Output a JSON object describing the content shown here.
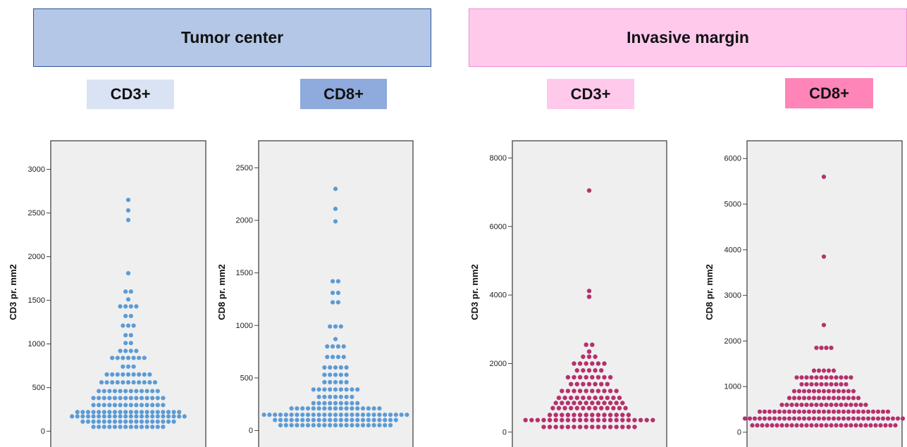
{
  "groups": [
    {
      "label": "Tumor center",
      "color": "#b4c7e7",
      "border": "#2f5597"
    },
    {
      "label": "Invasive margin",
      "color": "#ffc9ec",
      "border": "#f08cd0"
    }
  ],
  "markers": [
    {
      "label": "CD3+",
      "color": "#dae3f3"
    },
    {
      "label": "CD8+",
      "color": "#8faadc"
    },
    {
      "label": "CD3+",
      "color": "#ffc9ec"
    },
    {
      "label": "CD8+",
      "color": "#ff85b8"
    }
  ],
  "chart_data": [
    {
      "type": "scatter",
      "ylabel": "CD3 pr. mm2",
      "yticks": [
        0,
        500,
        1000,
        1500,
        2000,
        2500,
        3000
      ],
      "ylim": [
        -100,
        3150
      ],
      "point_color": "#5b9bd5",
      "bins": [
        {
          "y": 2650,
          "n": 1
        },
        {
          "y": 2530,
          "n": 1
        },
        {
          "y": 2420,
          "n": 1
        },
        {
          "y": 1810,
          "n": 1
        },
        {
          "y": 1600,
          "n": 2
        },
        {
          "y": 1510,
          "n": 1
        },
        {
          "y": 1430,
          "n": 4
        },
        {
          "y": 1320,
          "n": 2
        },
        {
          "y": 1210,
          "n": 3
        },
        {
          "y": 1100,
          "n": 2
        },
        {
          "y": 1010,
          "n": 2
        },
        {
          "y": 920,
          "n": 4
        },
        {
          "y": 840,
          "n": 7
        },
        {
          "y": 740,
          "n": 3
        },
        {
          "y": 650,
          "n": 9
        },
        {
          "y": 560,
          "n": 11
        },
        {
          "y": 460,
          "n": 12
        },
        {
          "y": 380,
          "n": 14
        },
        {
          "y": 300,
          "n": 14
        },
        {
          "y": 220,
          "n": 20
        },
        {
          "y": 170,
          "n": 22
        },
        {
          "y": 110,
          "n": 18
        },
        {
          "y": 50,
          "n": 14
        }
      ]
    },
    {
      "type": "scatter",
      "ylabel": "CD8 pr. mm2",
      "yticks": [
        0,
        500,
        1000,
        1500,
        2000,
        2500
      ],
      "ylim": [
        -90,
        2610
      ],
      "point_color": "#5b9bd5",
      "bins": [
        {
          "y": 2300,
          "n": 1
        },
        {
          "y": 2110,
          "n": 1
        },
        {
          "y": 1990,
          "n": 1
        },
        {
          "y": 1420,
          "n": 2
        },
        {
          "y": 1310,
          "n": 2
        },
        {
          "y": 1220,
          "n": 2
        },
        {
          "y": 990,
          "n": 3
        },
        {
          "y": 870,
          "n": 1
        },
        {
          "y": 800,
          "n": 4
        },
        {
          "y": 700,
          "n": 4
        },
        {
          "y": 600,
          "n": 5
        },
        {
          "y": 530,
          "n": 5
        },
        {
          "y": 460,
          "n": 5
        },
        {
          "y": 390,
          "n": 9
        },
        {
          "y": 320,
          "n": 7
        },
        {
          "y": 260,
          "n": 9
        },
        {
          "y": 210,
          "n": 17
        },
        {
          "y": 150,
          "n": 27
        },
        {
          "y": 100,
          "n": 23
        },
        {
          "y": 50,
          "n": 21
        }
      ]
    },
    {
      "type": "scatter",
      "ylabel": "CD3 pr. mm2",
      "yticks": [
        0,
        2000,
        4000,
        6000,
        8000
      ],
      "ylim": [
        -250,
        8050
      ],
      "point_color": "#b5306e",
      "bins": [
        {
          "y": 7050,
          "n": 1
        },
        {
          "y": 4120,
          "n": 1
        },
        {
          "y": 3950,
          "n": 1
        },
        {
          "y": 2550,
          "n": 2
        },
        {
          "y": 2350,
          "n": 1
        },
        {
          "y": 2200,
          "n": 3
        },
        {
          "y": 2000,
          "n": 6
        },
        {
          "y": 1800,
          "n": 5
        },
        {
          "y": 1600,
          "n": 8
        },
        {
          "y": 1400,
          "n": 7
        },
        {
          "y": 1200,
          "n": 10
        },
        {
          "y": 1000,
          "n": 11
        },
        {
          "y": 850,
          "n": 12
        },
        {
          "y": 700,
          "n": 13
        },
        {
          "y": 500,
          "n": 14
        },
        {
          "y": 350,
          "n": 22
        },
        {
          "y": 150,
          "n": 16
        }
      ]
    },
    {
      "type": "scatter",
      "ylabel": "CD8 pr. mm2",
      "yticks": [
        0,
        1000,
        2000,
        3000,
        4000,
        5000,
        6000
      ],
      "ylim": [
        -170,
        6050
      ],
      "point_color": "#b5306e",
      "bins": [
        {
          "y": 5600,
          "n": 1
        },
        {
          "y": 3850,
          "n": 1
        },
        {
          "y": 2350,
          "n": 1
        },
        {
          "y": 1850,
          "n": 4
        },
        {
          "y": 1350,
          "n": 5
        },
        {
          "y": 1200,
          "n": 12
        },
        {
          "y": 1050,
          "n": 10
        },
        {
          "y": 900,
          "n": 13
        },
        {
          "y": 750,
          "n": 15
        },
        {
          "y": 600,
          "n": 18
        },
        {
          "y": 450,
          "n": 27
        },
        {
          "y": 300,
          "n": 33
        },
        {
          "y": 150,
          "n": 30
        }
      ]
    }
  ]
}
